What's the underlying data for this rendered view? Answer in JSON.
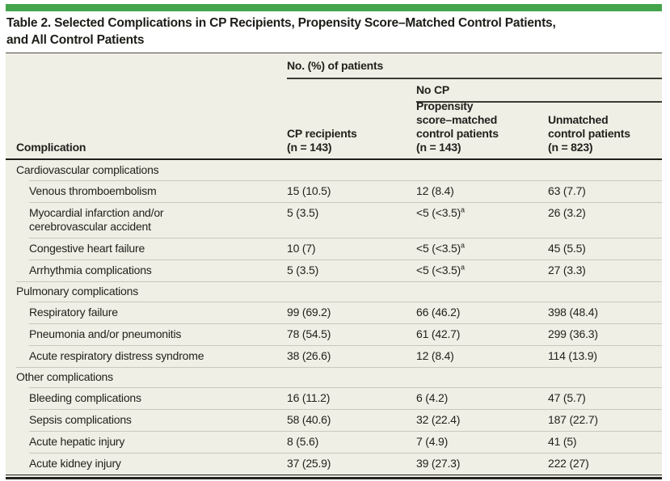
{
  "title": "Table 2. Selected Complications in CP Recipients, Propensity Score–Matched Control Patients,\nand All Control Patients",
  "colors": {
    "accent_green": "#44a44c",
    "table_background": "#f0efe6",
    "hairline": "#c9c8be",
    "dark_rule": "#22211b",
    "text": "#22211c"
  },
  "table": {
    "spanner_top": "No. (%) of patients",
    "spanner_sub": "No CP",
    "columns": [
      {
        "label": "Complication"
      },
      {
        "label": "CP recipients\n(n = 143)"
      },
      {
        "label": "Propensity\nscore–matched\ncontrol patients\n(n = 143)"
      },
      {
        "label": "Unmatched\ncontrol patients\n(n = 823)"
      }
    ],
    "rows": [
      {
        "type": "section",
        "label": "Cardiovascular complications"
      },
      {
        "type": "item",
        "label": "Venous thromboembolism",
        "values": [
          {
            "text": "15 (10.5)"
          },
          {
            "text": "12 (8.4)"
          },
          {
            "text": "63 (7.7)"
          }
        ]
      },
      {
        "type": "item",
        "label": "Myocardial infarction and/or\ncerebrovascular accident",
        "values": [
          {
            "text": "5 (3.5)"
          },
          {
            "text": "<5 (<3.5)",
            "sup": "a"
          },
          {
            "text": "26 (3.2)"
          }
        ]
      },
      {
        "type": "item",
        "label": "Congestive heart failure",
        "values": [
          {
            "text": "10 (7)"
          },
          {
            "text": "<5 (<3.5)",
            "sup": "a"
          },
          {
            "text": "45 (5.5)"
          }
        ]
      },
      {
        "type": "item",
        "label": "Arrhythmia complications",
        "values": [
          {
            "text": "5 (3.5)"
          },
          {
            "text": "<5 (<3.5)",
            "sup": "a"
          },
          {
            "text": "27 (3.3)"
          }
        ]
      },
      {
        "type": "section",
        "label": "Pulmonary complications"
      },
      {
        "type": "item",
        "label": "Respiratory failure",
        "values": [
          {
            "text": "99 (69.2)"
          },
          {
            "text": "66 (46.2)"
          },
          {
            "text": "398 (48.4)"
          }
        ]
      },
      {
        "type": "item",
        "label": "Pneumonia and/or pneumonitis",
        "values": [
          {
            "text": "78 (54.5)"
          },
          {
            "text": "61 (42.7)"
          },
          {
            "text": "299 (36.3)"
          }
        ]
      },
      {
        "type": "item",
        "label": "Acute respiratory distress syndrome",
        "values": [
          {
            "text": "38 (26.6)"
          },
          {
            "text": "12 (8.4)"
          },
          {
            "text": "114 (13.9)"
          }
        ]
      },
      {
        "type": "section",
        "label": "Other complications"
      },
      {
        "type": "item",
        "label": "Bleeding complications",
        "values": [
          {
            "text": "16 (11.2)"
          },
          {
            "text": "6 (4.2)"
          },
          {
            "text": "47 (5.7)"
          }
        ]
      },
      {
        "type": "item",
        "label": "Sepsis complications",
        "values": [
          {
            "text": "58 (40.6)"
          },
          {
            "text": "32 (22.4)"
          },
          {
            "text": "187 (22.7)"
          }
        ]
      },
      {
        "type": "item",
        "label": "Acute hepatic injury",
        "values": [
          {
            "text": "8 (5.6)"
          },
          {
            "text": "7 (4.9)"
          },
          {
            "text": "41 (5)"
          }
        ]
      },
      {
        "type": "item",
        "label": "Acute kidney injury",
        "values": [
          {
            "text": "37 (25.9)"
          },
          {
            "text": "39 (27.3)"
          },
          {
            "text": "222 (27)"
          }
        ]
      }
    ]
  }
}
